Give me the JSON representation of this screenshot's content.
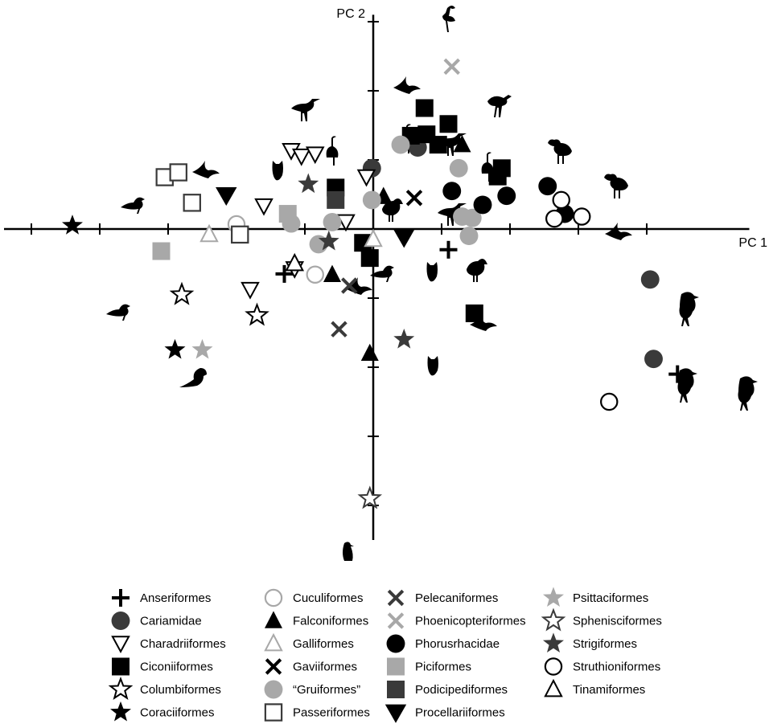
{
  "chart_data": {
    "type": "scatter",
    "xlabel": "PC 1",
    "ylabel": "PC 2",
    "xlim": [
      -5.4,
      5.5
    ],
    "ylim": [
      -4.5,
      3.1
    ],
    "grid": false,
    "legend_position": "bottom",
    "colors": {
      "black": "#000000",
      "dark": "#3a3a3a",
      "grey": "#a8a8a8"
    },
    "legend": [
      {
        "label": "Anseriformes",
        "shape": "plus",
        "color": "black"
      },
      {
        "label": "Cariamidae",
        "shape": "circle",
        "color": "dark"
      },
      {
        "label": "Charadriiformes",
        "shape": "tri-down-open",
        "color": "black"
      },
      {
        "label": "Ciconiiformes",
        "shape": "square",
        "color": "black"
      },
      {
        "label": "Columbiformes",
        "shape": "star-open",
        "color": "black"
      },
      {
        "label": "Coraciiformes",
        "shape": "star",
        "color": "black"
      },
      {
        "label": "Cuculiformes",
        "shape": "circle-open",
        "color": "grey"
      },
      {
        "label": "Falconiformes",
        "shape": "tri-up",
        "color": "black"
      },
      {
        "label": "Galliformes",
        "shape": "tri-up-open",
        "color": "grey"
      },
      {
        "label": "Gaviiformes",
        "shape": "x",
        "color": "black"
      },
      {
        "label": "“Gruiformes”",
        "shape": "circle",
        "color": "grey"
      },
      {
        "label": "Passeriformes",
        "shape": "square-open",
        "color": "dark"
      },
      {
        "label": "Pelecaniformes",
        "shape": "x",
        "color": "dark"
      },
      {
        "label": "Phoenicopteriformes",
        "shape": "x",
        "color": "grey"
      },
      {
        "label": "Phorusrhacidae",
        "shape": "circle",
        "color": "black"
      },
      {
        "label": "Piciformes",
        "shape": "square",
        "color": "grey"
      },
      {
        "label": "Podicipediformes",
        "shape": "square",
        "color": "dark"
      },
      {
        "label": "Procellariiformes",
        "shape": "tri-down",
        "color": "black"
      },
      {
        "label": "Psittaciformes",
        "shape": "star",
        "color": "grey"
      },
      {
        "label": "Sphenisciformes",
        "shape": "star-open",
        "color": "dark"
      },
      {
        "label": "Strigiformes",
        "shape": "star",
        "color": "dark"
      },
      {
        "label": "Struthioniformes",
        "shape": "circle-open",
        "color": "black"
      },
      {
        "label": "Tinamiformes",
        "shape": "tri-up-open",
        "color": "black"
      }
    ],
    "series": [
      {
        "group": "Anseriformes",
        "points": [
          [
            -1.3,
            -0.65
          ],
          [
            1.1,
            -0.3
          ],
          [
            4.45,
            -2.1
          ]
        ]
      },
      {
        "group": "Cariamidae",
        "points": [
          [
            -0.02,
            0.88
          ],
          [
            0.65,
            1.18
          ],
          [
            4.05,
            -0.73
          ],
          [
            4.1,
            -1.88
          ]
        ]
      },
      {
        "group": "Charadriiformes",
        "points": [
          [
            -1.2,
            1.13
          ],
          [
            -1.05,
            1.05
          ],
          [
            -0.85,
            1.08
          ],
          [
            -0.1,
            0.75
          ],
          [
            -1.6,
            0.33
          ],
          [
            -0.4,
            0.1
          ],
          [
            -1.15,
            -0.58
          ],
          [
            -1.8,
            -0.88
          ]
        ]
      },
      {
        "group": "Ciconiiformes",
        "points": [
          [
            0.75,
            1.75
          ],
          [
            1.1,
            1.52
          ],
          [
            0.55,
            1.35
          ],
          [
            0.78,
            1.37
          ],
          [
            0.95,
            1.22
          ],
          [
            1.88,
            0.88
          ],
          [
            1.82,
            0.76
          ],
          [
            -0.55,
            0.6
          ],
          [
            -0.15,
            -0.2
          ],
          [
            -0.05,
            -0.42
          ],
          [
            1.48,
            -1.22
          ]
        ]
      },
      {
        "group": "Columbiformes",
        "points": [
          [
            -2.8,
            -0.95
          ],
          [
            -1.7,
            -1.25
          ]
        ]
      },
      {
        "group": "Coraciiformes",
        "points": [
          [
            -4.4,
            0.05
          ],
          [
            -2.9,
            -1.75
          ]
        ]
      },
      {
        "group": "Cuculiformes",
        "points": [
          [
            -2.0,
            0.07
          ],
          [
            -0.85,
            -0.66
          ]
        ]
      },
      {
        "group": "Falconiformes",
        "points": [
          [
            1.3,
            1.22
          ],
          [
            0.15,
            0.47
          ],
          [
            -0.6,
            -0.66
          ],
          [
            -0.05,
            -1.8
          ]
        ]
      },
      {
        "group": "Galliformes",
        "points": [
          [
            -2.4,
            -0.08
          ],
          [
            0.0,
            -0.15
          ]
        ]
      },
      {
        "group": "Gaviiformes",
        "points": [
          [
            0.6,
            0.45
          ]
        ]
      },
      {
        "group": "Gruiformes",
        "points": [
          [
            0.4,
            1.22
          ],
          [
            1.25,
            0.88
          ],
          [
            -0.02,
            0.42
          ],
          [
            1.3,
            0.18
          ],
          [
            1.45,
            0.16
          ],
          [
            -1.2,
            0.08
          ],
          [
            -0.6,
            0.1
          ],
          [
            1.4,
            -0.1
          ],
          [
            -0.8,
            -0.22
          ]
        ]
      },
      {
        "group": "Passeriformes",
        "points": [
          [
            -3.05,
            0.75
          ],
          [
            -2.85,
            0.82
          ],
          [
            -2.65,
            0.38
          ],
          [
            -1.95,
            -0.08
          ]
        ]
      },
      {
        "group": "Pelecaniformes",
        "points": [
          [
            -0.35,
            -0.82
          ],
          [
            -0.5,
            -1.45
          ]
        ]
      },
      {
        "group": "Phoenicopteriformes",
        "points": [
          [
            1.15,
            2.35
          ]
        ]
      },
      {
        "group": "Phorusrhacidae",
        "points": [
          [
            1.15,
            0.55
          ],
          [
            1.6,
            0.35
          ],
          [
            1.95,
            0.48
          ],
          [
            2.55,
            0.62
          ],
          [
            2.8,
            0.22
          ]
        ]
      },
      {
        "group": "Piciformes",
        "points": [
          [
            -1.25,
            0.22
          ],
          [
            -3.1,
            -0.32
          ]
        ]
      },
      {
        "group": "Podicipediformes",
        "points": [
          [
            -0.55,
            0.42
          ]
        ]
      },
      {
        "group": "Procellariiformes",
        "points": [
          [
            -2.15,
            0.49
          ],
          [
            0.45,
            -0.12
          ]
        ]
      },
      {
        "group": "Psittaciformes",
        "points": [
          [
            -2.5,
            -1.75
          ]
        ]
      },
      {
        "group": "Sphenisciformes",
        "points": [
          [
            -0.05,
            -3.9
          ]
        ]
      },
      {
        "group": "Strigiformes",
        "points": [
          [
            -0.95,
            0.65
          ],
          [
            -0.65,
            -0.18
          ],
          [
            0.45,
            -1.6
          ]
        ]
      },
      {
        "group": "Struthioniformes",
        "points": [
          [
            2.75,
            0.42
          ],
          [
            2.65,
            0.15
          ],
          [
            3.05,
            0.18
          ],
          [
            3.45,
            -2.5
          ]
        ]
      },
      {
        "group": "Tinamiformes",
        "points": [
          [
            -1.15,
            -0.5
          ]
        ]
      }
    ]
  }
}
